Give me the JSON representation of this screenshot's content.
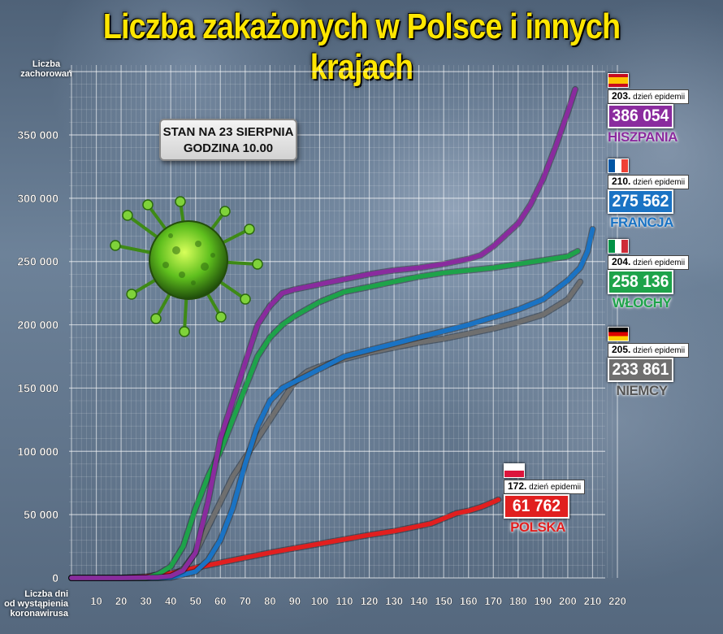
{
  "title": "Liczba zakażonych w Polsce i innych krajach",
  "y_caption_line1": "Liczba",
  "y_caption_line2": "zachorowań",
  "x_caption_line1": "Liczba dni",
  "x_caption_line2": "od wystąpienia",
  "x_caption_line3": "koronawirusa",
  "stan_line1": "STAN NA 23 SIERPNIA",
  "stan_line2": "GODZINA 10.00",
  "days_suffix": "dzień epidemii",
  "colors": {
    "title": "#ffe600",
    "hiszpania": "#8a2b9e",
    "francja": "#1a73c4",
    "wlochy": "#1ea34a",
    "niemcy": "#6f6f6f",
    "polska": "#e11f1f"
  },
  "labels": {
    "hiszpania": {
      "day": "203.",
      "value": "386 054",
      "name": "HISZPANIA"
    },
    "francja": {
      "day": "210.",
      "value": "275 562",
      "name": "FRANCJA"
    },
    "wlochy": {
      "day": "204.",
      "value": "258 136",
      "name": "WŁOCHY"
    },
    "niemcy": {
      "day": "205.",
      "value": "233 861",
      "name": "NIEMCY"
    },
    "polska": {
      "day": "172.",
      "value": "61 762",
      "name": "POLSKA"
    }
  },
  "chart_data": {
    "type": "line",
    "xlim": [
      0,
      220
    ],
    "ylim": [
      0,
      400000
    ],
    "x_ticks": [
      "10",
      "20",
      "30",
      "40",
      "50",
      "60",
      "70",
      "80",
      "90",
      "100",
      "110",
      "120",
      "130",
      "140",
      "150",
      "160",
      "170",
      "180",
      "190",
      "200",
      "210",
      "220"
    ],
    "y_ticks": [
      "0",
      "50 000",
      "100 000",
      "150 000",
      "200 000",
      "250 000",
      "300 000",
      "350 000"
    ],
    "grid": true,
    "series": [
      {
        "name": "HISZPANIA",
        "color": "#8a2b9e",
        "x": [
          0,
          20,
          35,
          40,
          45,
          50,
          55,
          60,
          65,
          70,
          75,
          80,
          85,
          90,
          100,
          110,
          120,
          130,
          140,
          150,
          160,
          165,
          170,
          180,
          185,
          190,
          195,
          200,
          203
        ],
        "y": [
          0,
          0,
          500,
          1500,
          6000,
          20000,
          60000,
          110000,
          140000,
          170000,
          200000,
          215000,
          225000,
          228000,
          232000,
          236000,
          240000,
          243000,
          245000,
          248000,
          252000,
          255000,
          262000,
          280000,
          295000,
          315000,
          340000,
          368000,
          386054
        ]
      },
      {
        "name": "FRANCJA",
        "color": "#1a73c4",
        "x": [
          0,
          30,
          40,
          50,
          55,
          60,
          65,
          70,
          75,
          80,
          85,
          90,
          95,
          100,
          110,
          120,
          130,
          140,
          150,
          160,
          170,
          180,
          190,
          200,
          205,
          208,
          210
        ],
        "y": [
          0,
          0,
          300,
          5000,
          14000,
          30000,
          55000,
          90000,
          120000,
          140000,
          150000,
          155000,
          160000,
          165000,
          175000,
          180000,
          185000,
          190000,
          195000,
          200000,
          206000,
          212000,
          220000,
          235000,
          245000,
          258000,
          275562
        ]
      },
      {
        "name": "WŁOCHY",
        "color": "#1ea34a",
        "x": [
          0,
          30,
          35,
          40,
          45,
          50,
          55,
          60,
          65,
          70,
          75,
          80,
          85,
          90,
          100,
          110,
          120,
          130,
          140,
          150,
          160,
          170,
          180,
          190,
          200,
          204
        ],
        "y": [
          0,
          0,
          3000,
          9000,
          25000,
          55000,
          80000,
          100000,
          125000,
          150000,
          175000,
          190000,
          200000,
          207000,
          218000,
          226000,
          230000,
          234000,
          238000,
          241000,
          243000,
          245000,
          248000,
          251000,
          254000,
          258136
        ]
      },
      {
        "name": "NIEMCY",
        "color": "#6f6f6f",
        "x": [
          0,
          35,
          40,
          45,
          50,
          55,
          60,
          65,
          70,
          75,
          80,
          85,
          90,
          95,
          100,
          110,
          120,
          130,
          140,
          150,
          160,
          170,
          180,
          190,
          200,
          205
        ],
        "y": [
          0,
          0,
          1000,
          7000,
          20000,
          40000,
          60000,
          80000,
          95000,
          110000,
          125000,
          140000,
          155000,
          163000,
          167000,
          173000,
          178000,
          182000,
          186000,
          189000,
          193000,
          197000,
          202000,
          208000,
          220000,
          233861
        ]
      },
      {
        "name": "POLSKA",
        "color": "#e11f1f",
        "x": [
          0,
          20,
          30,
          40,
          50,
          60,
          70,
          80,
          90,
          100,
          110,
          120,
          130,
          140,
          145,
          150,
          155,
          160,
          165,
          170,
          172
        ],
        "y": [
          0,
          0,
          1000,
          3500,
          8000,
          12000,
          16000,
          20000,
          23500,
          27000,
          30500,
          34000,
          37000,
          41000,
          43000,
          47000,
          51000,
          53000,
          56000,
          60000,
          61762
        ]
      }
    ]
  }
}
